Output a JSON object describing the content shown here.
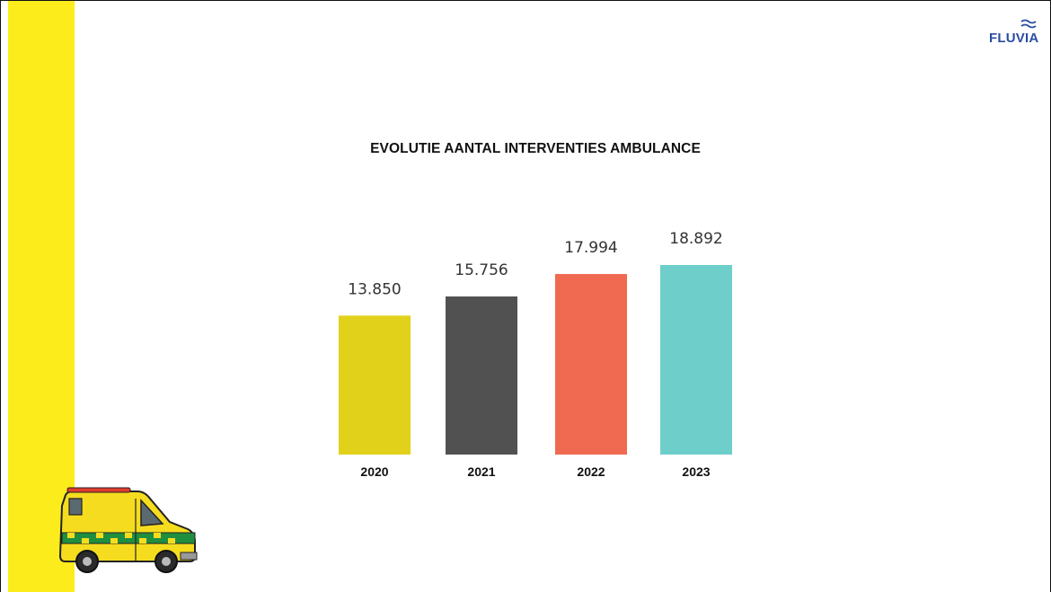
{
  "logo": {
    "text": "FLUVIA"
  },
  "chart_data": {
    "type": "bar",
    "title": "EVOLUTIE AANTAL INTERVENTIES AMBULANCE",
    "categories": [
      "2020",
      "2021",
      "2022",
      "2023"
    ],
    "values": [
      13850,
      15756,
      17994,
      18892
    ],
    "value_labels": [
      "13.850",
      "15.756",
      "17.994",
      "18.892"
    ],
    "colors": [
      "#e2d11b",
      "#515152",
      "#ef6a50",
      "#6ecec9"
    ],
    "xlabel": "",
    "ylabel": "",
    "grid": false,
    "legend": "none"
  },
  "colors": {
    "band": "#fcec1c",
    "logo_blue": "#2b4da3"
  }
}
